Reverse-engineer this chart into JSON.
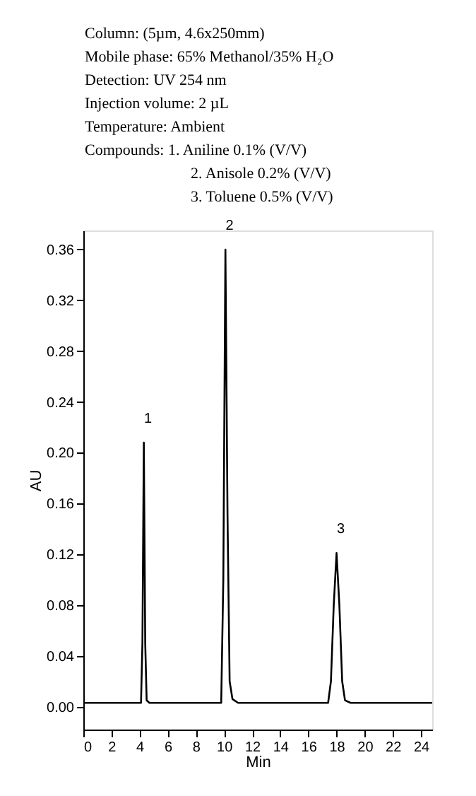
{
  "chart_data": {
    "type": "line",
    "xlabel": "Min",
    "ylabel": "AU",
    "annotations": [
      "Column: (5µm, 4.6x250mm)",
      "Mobile phase: 65% Methanol/35% H₂O",
      "Detection: UV 254 nm",
      "Injection volume: 2 µL",
      "Temperature: Ambient",
      "Compounds: 1. Aniline 0.1% (V/V)",
      "2. Anisole 0.2% (V/V)",
      "3. Toluene 0.5% (V/V)",
      {
        "text": "1",
        "x": 4.3,
        "y": 0.208
      },
      {
        "text": "2",
        "x": 10.1,
        "y": 0.36
      },
      {
        "text": "3",
        "x": 18.0,
        "y": 0.121
      }
    ],
    "x": [
      0,
      4.1,
      4.2,
      4.3,
      4.4,
      4.5,
      4.7,
      6.3,
      9.8,
      9.95,
      10.1,
      10.25,
      10.4,
      10.6,
      11,
      17.4,
      17.6,
      17.8,
      18.0,
      18.2,
      18.4,
      18.6,
      19,
      24.8
    ],
    "series": [
      {
        "color": "#000000",
        "values": [
          0.003,
          0.003,
          0.05,
          0.208,
          0.05,
          0.005,
          0.003,
          0.003,
          0.003,
          0.1,
          0.36,
          0.15,
          0.02,
          0.006,
          0.003,
          0.003,
          0.02,
          0.08,
          0.121,
          0.08,
          0.02,
          0.005,
          0.003,
          0.003
        ]
      }
    ],
    "xlim": [
      0,
      24.8
    ],
    "ylim": [
      -0.018,
      0.375
    ],
    "xticks": [
      0,
      2,
      4,
      6,
      8,
      10,
      12,
      14,
      16,
      18,
      20,
      22,
      24
    ],
    "yticks": [
      {
        "value": 0,
        "label": "0.00"
      },
      {
        "value": 0.04,
        "label": "0.04"
      },
      {
        "value": 0.08,
        "label": "0.08"
      },
      {
        "value": 0.12,
        "label": "0.12"
      },
      {
        "value": 0.16,
        "label": "0.16"
      },
      {
        "value": 0.2,
        "label": "0.20"
      },
      {
        "value": 0.24,
        "label": "0.24"
      },
      {
        "value": 0.28,
        "label": "0.28"
      },
      {
        "value": 0.32,
        "label": "0.32"
      },
      {
        "value": 0.36,
        "label": "0.36"
      }
    ],
    "grid": false,
    "marker": "none",
    "line_style": "solid"
  }
}
